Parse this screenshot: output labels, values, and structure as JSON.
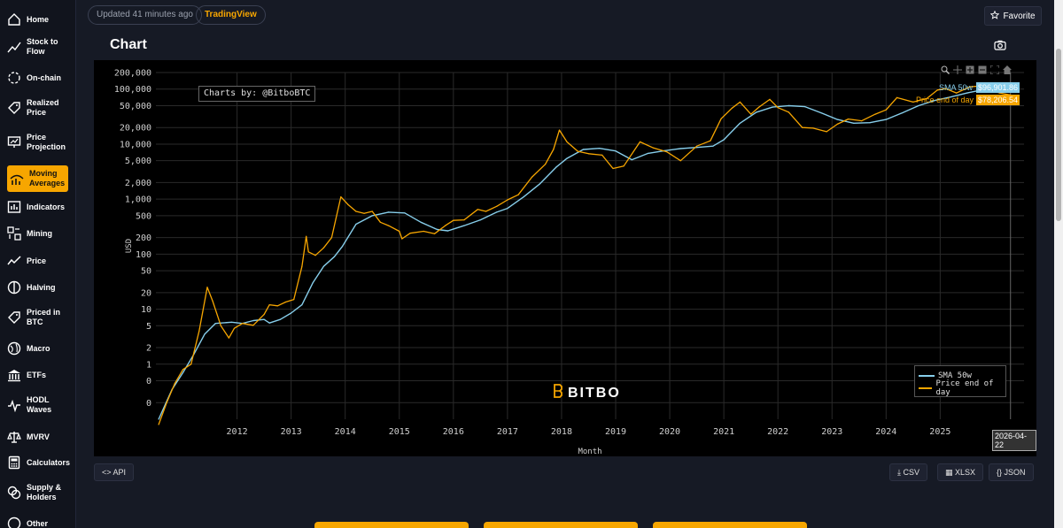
{
  "sidebar": {
    "items": [
      {
        "label": "Home",
        "icon": "home-icon"
      },
      {
        "label": "Stock to Flow",
        "icon": "trend-icon"
      },
      {
        "label": "On-chain",
        "icon": "onchain-icon"
      },
      {
        "label": "Realized Price",
        "icon": "tag-icon"
      },
      {
        "label": "Price Projection",
        "icon": "projection-icon"
      },
      {
        "label": "Moving Averages",
        "icon": "moving-averages-icon",
        "active": true
      },
      {
        "label": "Indicators",
        "icon": "indicators-icon"
      },
      {
        "label": "Mining",
        "icon": "mining-icon"
      },
      {
        "label": "Price",
        "icon": "price-icon"
      },
      {
        "label": "Halving",
        "icon": "halving-icon"
      },
      {
        "label": "Priced in BTC",
        "icon": "tag-icon"
      },
      {
        "label": "Macro",
        "icon": "globe-icon"
      },
      {
        "label": "ETFs",
        "icon": "bank-icon"
      },
      {
        "label": "HODL Waves",
        "icon": "wave-icon"
      },
      {
        "label": "MVRV",
        "icon": "scale-icon"
      },
      {
        "label": "Calculators",
        "icon": "calculator-icon"
      },
      {
        "label": "Supply & Holders",
        "icon": "coins-icon"
      },
      {
        "label": "Other",
        "icon": "other-icon"
      }
    ]
  },
  "header": {
    "updated": "Updated 41 minutes ago",
    "source": "TradingView",
    "favorite": "Favorite",
    "title": "Chart"
  },
  "chart_panel": {
    "credit": "Charts by: @BitboBTC",
    "logo_text": "BITBO",
    "hover_date": "2026-04-22",
    "hover_sma_name": "SMA 50w",
    "hover_sma_value": "$96,901.86",
    "hover_price_name": "Price end of day",
    "hover_price_value": "$78,206.54"
  },
  "buttons": {
    "api": "<> API",
    "csv": "CSV",
    "xlsx": "XLSX",
    "json": "{} JSON"
  },
  "colors": {
    "price": "#f7a600",
    "sma": "#87ceeb",
    "accent": "#f7a600",
    "background": "#000000"
  },
  "chart_data": {
    "type": "line",
    "title": "",
    "xlabel": "Month",
    "ylabel": "USD",
    "yscale": "log",
    "grid": true,
    "legend_position": "bottom-right",
    "x_ticks": [
      "2012",
      "2013",
      "2014",
      "2015",
      "2016",
      "2017",
      "2018",
      "2019",
      "2020",
      "2021",
      "2022",
      "2023",
      "2024",
      "2025"
    ],
    "y_ticks": [
      {
        "label": "200,000",
        "value": 200000
      },
      {
        "label": "100,000",
        "value": 100000
      },
      {
        "label": "50,000",
        "value": 50000
      },
      {
        "label": "20,000",
        "value": 20000
      },
      {
        "label": "10,000",
        "value": 10000
      },
      {
        "label": "5,000",
        "value": 5000
      },
      {
        "label": "2,000",
        "value": 2000
      },
      {
        "label": "1,000",
        "value": 1000
      },
      {
        "label": "500",
        "value": 500
      },
      {
        "label": "200",
        "value": 200
      },
      {
        "label": "100",
        "value": 100
      },
      {
        "label": "50",
        "value": 50
      },
      {
        "label": "20",
        "value": 20
      },
      {
        "label": "10",
        "value": 10
      },
      {
        "label": "5",
        "value": 5
      },
      {
        "label": "2",
        "value": 2
      },
      {
        "label": "1",
        "value": 1
      },
      {
        "label": "0",
        "value": 0.5
      },
      {
        "label": "0",
        "value": 0.2
      }
    ],
    "series": [
      {
        "name": "SMA 50w",
        "x": [
          2010.55,
          2010.8,
          2011.0,
          2011.2,
          2011.4,
          2011.6,
          2011.9,
          2012.1,
          2012.3,
          2012.5,
          2012.6,
          2012.8,
          2013.0,
          2013.2,
          2013.4,
          2013.6,
          2013.8,
          2013.95,
          2014.2,
          2014.5,
          2014.8,
          2015.1,
          2015.4,
          2015.7,
          2015.9,
          2016.2,
          2016.5,
          2016.8,
          2017.0,
          2017.3,
          2017.6,
          2017.9,
          2018.1,
          2018.4,
          2018.7,
          2019.0,
          2019.3,
          2019.6,
          2019.9,
          2020.2,
          2020.5,
          2020.8,
          2021.0,
          2021.3,
          2021.6,
          2021.9,
          2022.2,
          2022.5,
          2022.8,
          2023.1,
          2023.4,
          2023.7,
          2024.0,
          2024.3,
          2024.6,
          2024.9,
          2025.2,
          2025.5,
          2025.8,
          2026.0,
          2026.3
        ],
        "y": [
          0.1,
          0.35,
          0.7,
          1.5,
          3.5,
          5.5,
          5.8,
          5.5,
          6.2,
          6.5,
          5.6,
          6.5,
          8.5,
          12,
          30,
          60,
          90,
          140,
          350,
          500,
          580,
          560,
          380,
          280,
          265,
          330,
          420,
          580,
          680,
          1100,
          1900,
          3800,
          5500,
          8000,
          8400,
          7500,
          5200,
          6800,
          7600,
          8300,
          8700,
          9200,
          12000,
          24000,
          38000,
          47000,
          50000,
          48000,
          37000,
          28000,
          24000,
          24500,
          28000,
          37000,
          50000,
          62000,
          72000,
          85000,
          98000,
          101000,
          96901.86
        ]
      },
      {
        "name": "Price end of day",
        "x": [
          2010.55,
          2010.7,
          2010.85,
          2011.0,
          2011.15,
          2011.3,
          2011.45,
          2011.55,
          2011.7,
          2011.85,
          2011.95,
          2012.1,
          2012.3,
          2012.5,
          2012.6,
          2012.75,
          2012.9,
          2013.05,
          2013.2,
          2013.28,
          2013.32,
          2013.45,
          2013.6,
          2013.75,
          2013.92,
          2014.05,
          2014.2,
          2014.35,
          2014.5,
          2014.65,
          2014.8,
          2015.0,
          2015.05,
          2015.2,
          2015.45,
          2015.65,
          2015.85,
          2016.0,
          2016.2,
          2016.45,
          2016.6,
          2016.8,
          2017.0,
          2017.2,
          2017.45,
          2017.7,
          2017.85,
          2017.96,
          2018.1,
          2018.3,
          2018.5,
          2018.75,
          2018.95,
          2019.15,
          2019.45,
          2019.7,
          2019.95,
          2020.2,
          2020.5,
          2020.75,
          2020.95,
          2021.15,
          2021.3,
          2021.5,
          2021.65,
          2021.85,
          2022.0,
          2022.2,
          2022.45,
          2022.65,
          2022.9,
          2023.1,
          2023.3,
          2023.55,
          2023.8,
          2024.0,
          2024.2,
          2024.5,
          2024.75,
          2024.95,
          2025.1,
          2025.3,
          2025.55,
          2025.8,
          2025.95,
          2026.1,
          2026.3
        ],
        "y": [
          0.08,
          0.2,
          0.45,
          0.8,
          1.0,
          4.0,
          25,
          14,
          5.0,
          3.0,
          4.5,
          5.5,
          5.1,
          8.0,
          12,
          11.5,
          13.5,
          15,
          60,
          210,
          110,
          95,
          130,
          200,
          1100,
          800,
          600,
          550,
          600,
          380,
          330,
          260,
          190,
          240,
          260,
          235,
          330,
          410,
          420,
          650,
          600,
          740,
          970,
          1200,
          2500,
          4300,
          8000,
          18000,
          11000,
          7400,
          6700,
          6300,
          3600,
          4000,
          11000,
          8500,
          7200,
          5000,
          9200,
          11500,
          29000,
          45000,
          58000,
          35000,
          47000,
          65000,
          46000,
          38000,
          20000,
          19500,
          16800,
          23000,
          28500,
          26500,
          35000,
          42000,
          70000,
          58000,
          67000,
          96000,
          102000,
          85000,
          110000,
          115000,
          94000,
          85000,
          78206.54
        ]
      }
    ]
  }
}
